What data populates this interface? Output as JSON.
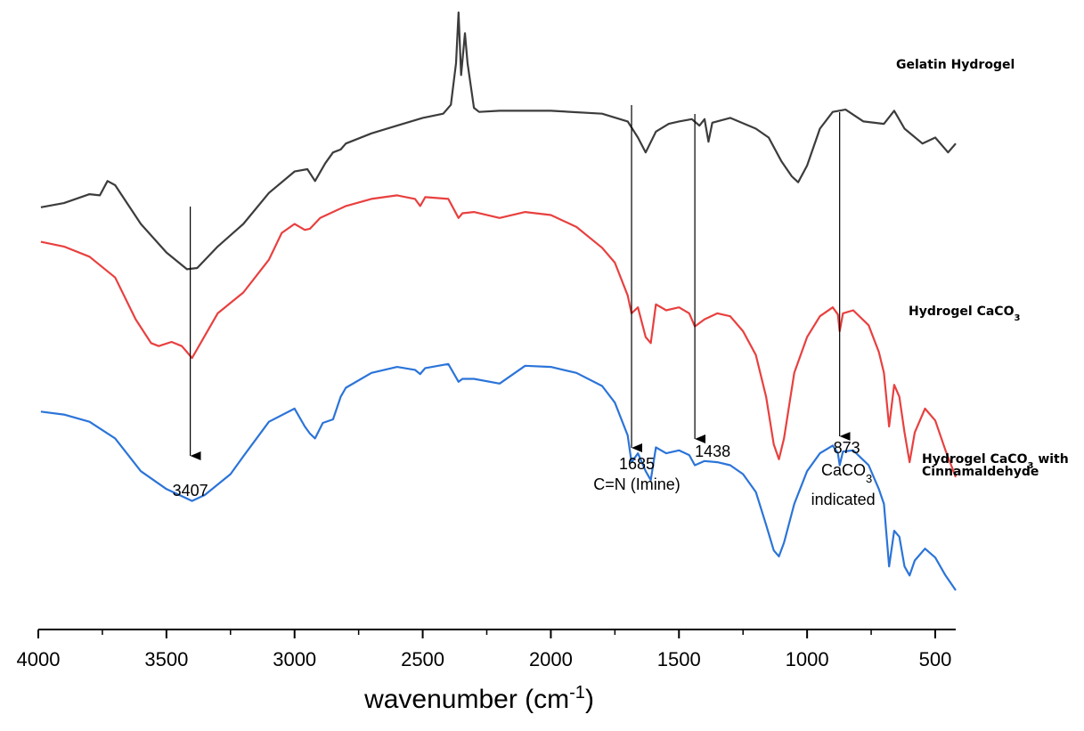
{
  "chart_data": {
    "type": "line",
    "xlabel_main": "wavenumber (cm",
    "xlabel_sup": "-1",
    "xlabel_tail": ")",
    "xlim": [
      4000,
      420
    ],
    "reversed_x": true,
    "x_ticks": [
      4000,
      3500,
      3000,
      2500,
      2000,
      1500,
      1000,
      500
    ],
    "y_axis_shown": false,
    "grid": false,
    "series": [
      {
        "name": "Gelatin Hydrogel",
        "label_parts": [
          "Gelatin Hydrogel"
        ],
        "color": "#3c3c3c",
        "points": [
          [
            3990,
            0.818
          ],
          [
            3900,
            0.825
          ],
          [
            3800,
            0.84
          ],
          [
            3760,
            0.838
          ],
          [
            3730,
            0.862
          ],
          [
            3700,
            0.855
          ],
          [
            3600,
            0.79
          ],
          [
            3500,
            0.742
          ],
          [
            3420,
            0.714
          ],
          [
            3380,
            0.716
          ],
          [
            3300,
            0.752
          ],
          [
            3200,
            0.79
          ],
          [
            3100,
            0.842
          ],
          [
            3000,
            0.878
          ],
          [
            2950,
            0.882
          ],
          [
            2920,
            0.862
          ],
          [
            2880,
            0.892
          ],
          [
            2850,
            0.91
          ],
          [
            2820,
            0.915
          ],
          [
            2800,
            0.925
          ],
          [
            2700,
            0.942
          ],
          [
            2600,
            0.955
          ],
          [
            2500,
            0.968
          ],
          [
            2420,
            0.975
          ],
          [
            2390,
            0.99
          ],
          [
            2370,
            1.06
          ],
          [
            2360,
            1.145
          ],
          [
            2350,
            1.04
          ],
          [
            2335,
            1.11
          ],
          [
            2325,
            1.06
          ],
          [
            2300,
            0.985
          ],
          [
            2280,
            0.978
          ],
          [
            2200,
            0.98
          ],
          [
            2000,
            0.98
          ],
          [
            1800,
            0.975
          ],
          [
            1700,
            0.962
          ],
          [
            1660,
            0.935
          ],
          [
            1630,
            0.91
          ],
          [
            1590,
            0.945
          ],
          [
            1540,
            0.958
          ],
          [
            1500,
            0.962
          ],
          [
            1450,
            0.966
          ],
          [
            1420,
            0.955
          ],
          [
            1400,
            0.966
          ],
          [
            1385,
            0.928
          ],
          [
            1370,
            0.96
          ],
          [
            1300,
            0.968
          ],
          [
            1200,
            0.95
          ],
          [
            1150,
            0.935
          ],
          [
            1100,
            0.895
          ],
          [
            1060,
            0.87
          ],
          [
            1035,
            0.86
          ],
          [
            1000,
            0.888
          ],
          [
            950,
            0.95
          ],
          [
            900,
            0.978
          ],
          [
            850,
            0.982
          ],
          [
            780,
            0.962
          ],
          [
            700,
            0.958
          ],
          [
            660,
            0.98
          ],
          [
            620,
            0.95
          ],
          [
            550,
            0.925
          ],
          [
            500,
            0.935
          ],
          [
            450,
            0.91
          ],
          [
            420,
            0.925
          ]
        ]
      },
      {
        "name": "Hydrogel CaCO3",
        "label_parts": [
          "Hydrogel CaCO",
          "3"
        ],
        "color": "#e8403f",
        "points": [
          [
            3990,
            0.76
          ],
          [
            3900,
            0.752
          ],
          [
            3800,
            0.735
          ],
          [
            3700,
            0.7
          ],
          [
            3620,
            0.63
          ],
          [
            3560,
            0.59
          ],
          [
            3530,
            0.585
          ],
          [
            3480,
            0.592
          ],
          [
            3440,
            0.585
          ],
          [
            3420,
            0.575
          ],
          [
            3400,
            0.565
          ],
          [
            3380,
            0.58
          ],
          [
            3300,
            0.64
          ],
          [
            3200,
            0.675
          ],
          [
            3100,
            0.73
          ],
          [
            3050,
            0.775
          ],
          [
            3000,
            0.79
          ],
          [
            2960,
            0.78
          ],
          [
            2940,
            0.782
          ],
          [
            2900,
            0.8
          ],
          [
            2800,
            0.82
          ],
          [
            2700,
            0.832
          ],
          [
            2600,
            0.838
          ],
          [
            2530,
            0.832
          ],
          [
            2510,
            0.82
          ],
          [
            2490,
            0.835
          ],
          [
            2400,
            0.832
          ],
          [
            2360,
            0.8
          ],
          [
            2345,
            0.808
          ],
          [
            2300,
            0.81
          ],
          [
            2200,
            0.8
          ],
          [
            2100,
            0.81
          ],
          [
            2000,
            0.805
          ],
          [
            1900,
            0.785
          ],
          [
            1800,
            0.75
          ],
          [
            1750,
            0.725
          ],
          [
            1700,
            0.67
          ],
          [
            1685,
            0.64
          ],
          [
            1660,
            0.65
          ],
          [
            1630,
            0.6
          ],
          [
            1610,
            0.59
          ],
          [
            1590,
            0.655
          ],
          [
            1550,
            0.645
          ],
          [
            1500,
            0.65
          ],
          [
            1460,
            0.64
          ],
          [
            1438,
            0.618
          ],
          [
            1400,
            0.63
          ],
          [
            1350,
            0.64
          ],
          [
            1300,
            0.635
          ],
          [
            1250,
            0.61
          ],
          [
            1200,
            0.57
          ],
          [
            1160,
            0.5
          ],
          [
            1130,
            0.42
          ],
          [
            1110,
            0.395
          ],
          [
            1090,
            0.43
          ],
          [
            1050,
            0.54
          ],
          [
            1000,
            0.6
          ],
          [
            950,
            0.635
          ],
          [
            900,
            0.65
          ],
          [
            880,
            0.638
          ],
          [
            873,
            0.61
          ],
          [
            860,
            0.64
          ],
          [
            820,
            0.645
          ],
          [
            760,
            0.62
          ],
          [
            720,
            0.575
          ],
          [
            700,
            0.54
          ],
          [
            680,
            0.45
          ],
          [
            660,
            0.52
          ],
          [
            640,
            0.5
          ],
          [
            620,
            0.44
          ],
          [
            600,
            0.39
          ],
          [
            580,
            0.44
          ],
          [
            540,
            0.48
          ],
          [
            500,
            0.46
          ],
          [
            460,
            0.41
          ],
          [
            420,
            0.365
          ]
        ]
      },
      {
        "name": "Hydrogel CaCO3 with Cinnamaldehyde",
        "label_parts": [
          "Hydrogel CaCO",
          "3",
          " with",
          "Cinnamaldehyde"
        ],
        "color": "#2b74d8",
        "points": [
          [
            3990,
            0.475
          ],
          [
            3900,
            0.47
          ],
          [
            3800,
            0.458
          ],
          [
            3700,
            0.43
          ],
          [
            3600,
            0.375
          ],
          [
            3500,
            0.345
          ],
          [
            3450,
            0.335
          ],
          [
            3400,
            0.325
          ],
          [
            3350,
            0.335
          ],
          [
            3250,
            0.37
          ],
          [
            3200,
            0.4
          ],
          [
            3100,
            0.458
          ],
          [
            3000,
            0.48
          ],
          [
            2960,
            0.45
          ],
          [
            2940,
            0.438
          ],
          [
            2920,
            0.43
          ],
          [
            2890,
            0.456
          ],
          [
            2850,
            0.462
          ],
          [
            2820,
            0.5
          ],
          [
            2800,
            0.515
          ],
          [
            2700,
            0.54
          ],
          [
            2600,
            0.55
          ],
          [
            2530,
            0.545
          ],
          [
            2510,
            0.538
          ],
          [
            2490,
            0.548
          ],
          [
            2400,
            0.555
          ],
          [
            2360,
            0.525
          ],
          [
            2345,
            0.53
          ],
          [
            2300,
            0.53
          ],
          [
            2200,
            0.522
          ],
          [
            2100,
            0.552
          ],
          [
            2000,
            0.55
          ],
          [
            1900,
            0.54
          ],
          [
            1800,
            0.518
          ],
          [
            1750,
            0.49
          ],
          [
            1700,
            0.435
          ],
          [
            1685,
            0.39
          ],
          [
            1660,
            0.405
          ],
          [
            1630,
            0.375
          ],
          [
            1610,
            0.36
          ],
          [
            1590,
            0.415
          ],
          [
            1550,
            0.405
          ],
          [
            1500,
            0.41
          ],
          [
            1460,
            0.402
          ],
          [
            1438,
            0.385
          ],
          [
            1400,
            0.392
          ],
          [
            1350,
            0.39
          ],
          [
            1300,
            0.385
          ],
          [
            1250,
            0.37
          ],
          [
            1200,
            0.34
          ],
          [
            1160,
            0.285
          ],
          [
            1130,
            0.242
          ],
          [
            1110,
            0.232
          ],
          [
            1090,
            0.255
          ],
          [
            1050,
            0.32
          ],
          [
            1000,
            0.375
          ],
          [
            950,
            0.405
          ],
          [
            900,
            0.418
          ],
          [
            880,
            0.405
          ],
          [
            873,
            0.385
          ],
          [
            860,
            0.408
          ],
          [
            820,
            0.41
          ],
          [
            760,
            0.385
          ],
          [
            720,
            0.345
          ],
          [
            700,
            0.32
          ],
          [
            680,
            0.215
          ],
          [
            660,
            0.275
          ],
          [
            640,
            0.265
          ],
          [
            620,
            0.215
          ],
          [
            600,
            0.2
          ],
          [
            580,
            0.225
          ],
          [
            540,
            0.245
          ],
          [
            500,
            0.23
          ],
          [
            460,
            0.2
          ],
          [
            420,
            0.175
          ]
        ]
      }
    ],
    "annotations": [
      {
        "x": 3407,
        "label_lines": [
          "3407"
        ],
        "top_series": 0
      },
      {
        "x": 1685,
        "label_lines": [
          "1685",
          "C=N (Imine)"
        ],
        "top_series": 0
      },
      {
        "x": 1438,
        "label_lines": [
          "1438"
        ],
        "top_series": 0
      },
      {
        "x": 873,
        "label_lines": [
          "873",
          "CaCO",
          "3",
          "indicated"
        ],
        "top_series": 0
      }
    ]
  }
}
